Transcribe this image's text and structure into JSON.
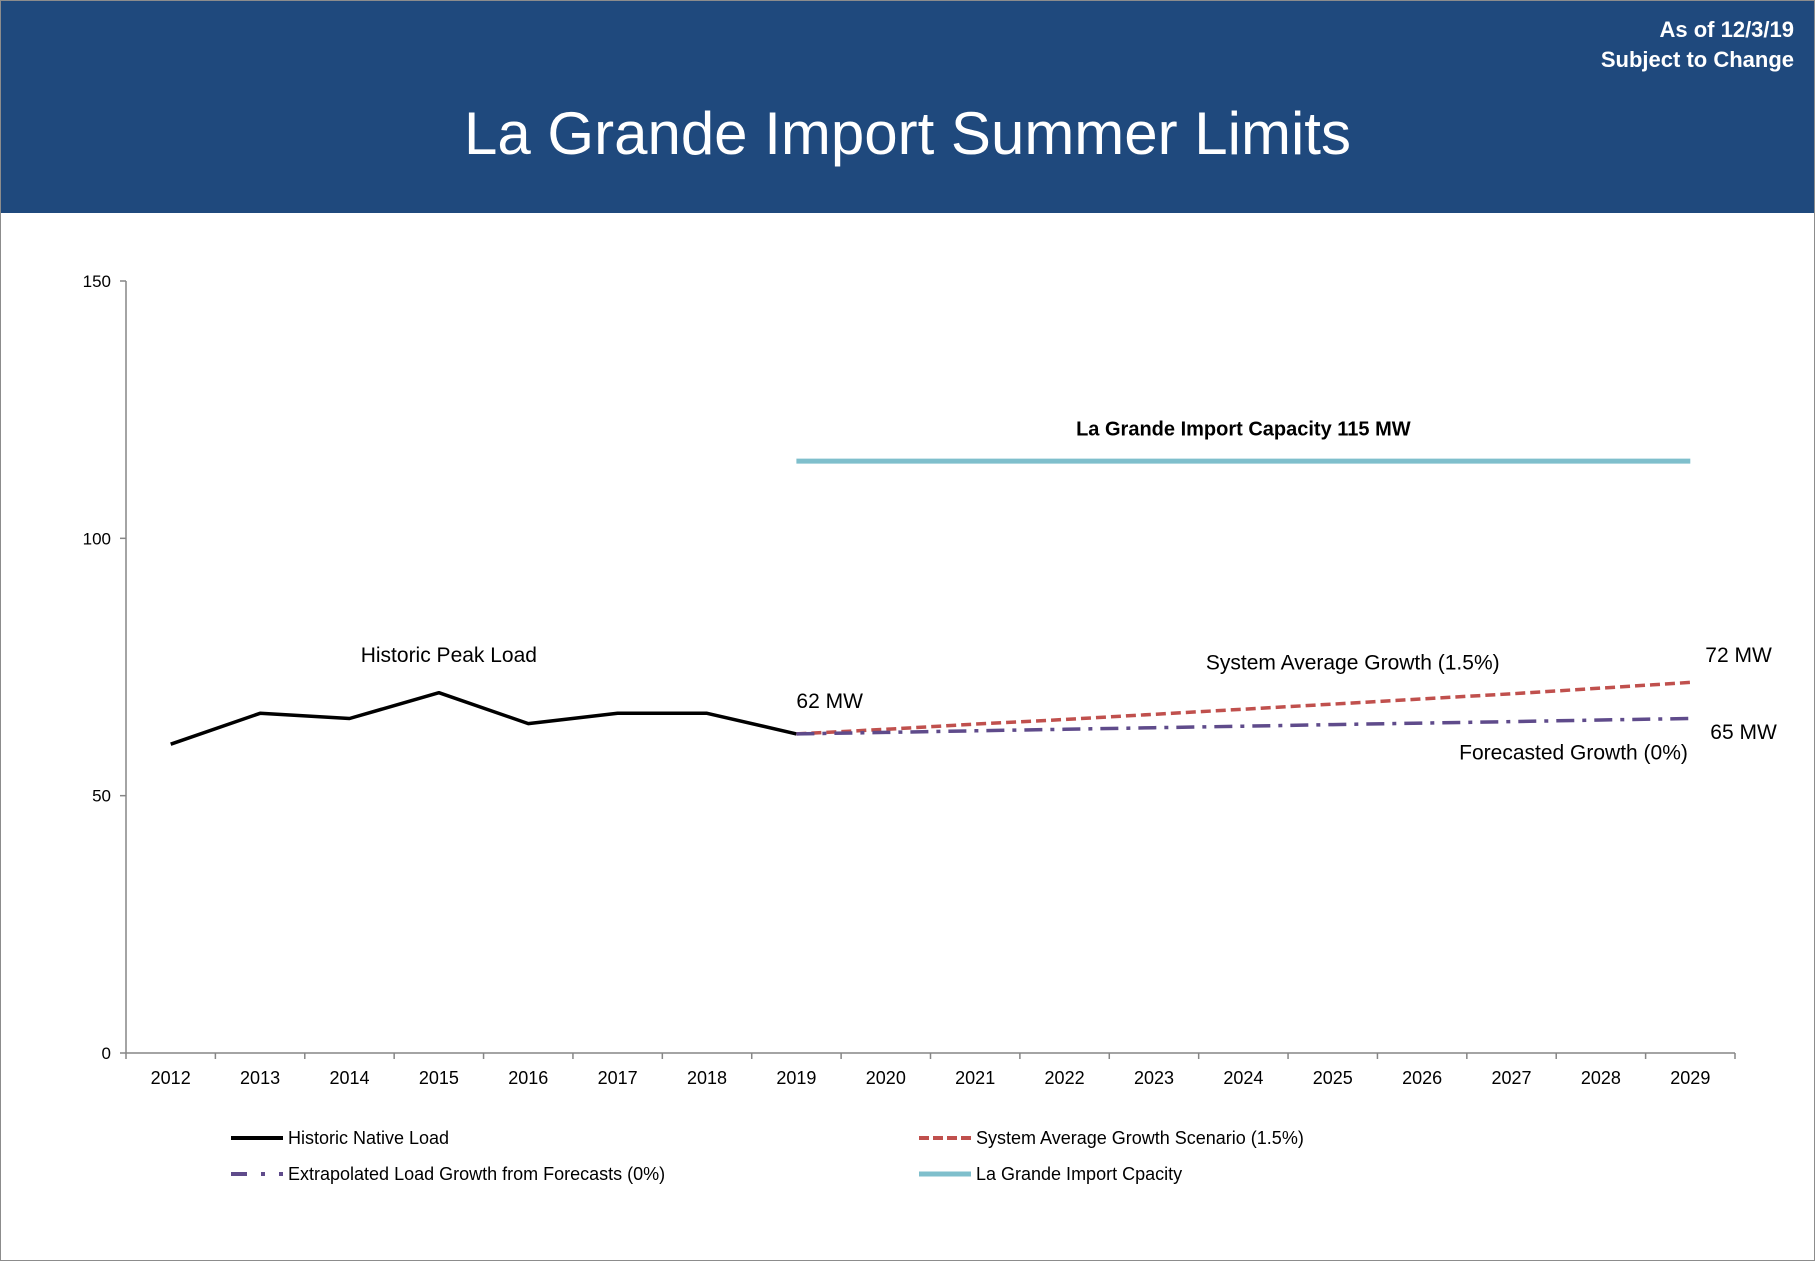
{
  "header": {
    "date_line": "As of 12/3/19",
    "change_line": "Subject to Change",
    "title": "La Grande Import Summer Limits"
  },
  "chart_data": {
    "type": "line",
    "title": "La Grande Import Summer Limits",
    "xlabel": "",
    "ylabel": "",
    "categories": [
      "2012",
      "2013",
      "2014",
      "2015",
      "2016",
      "2017",
      "2018",
      "2019",
      "2020",
      "2021",
      "2022",
      "2023",
      "2024",
      "2025",
      "2026",
      "2027",
      "2028",
      "2029"
    ],
    "ylim": [
      0,
      150
    ],
    "yticks": [
      0,
      50,
      100,
      150
    ],
    "grid": false,
    "legend_position": "bottom",
    "series": [
      {
        "name": "Historic Native Load",
        "color": "#000000",
        "dash": "solid",
        "values": [
          60,
          66,
          65,
          70,
          64,
          66,
          66,
          62,
          null,
          null,
          null,
          null,
          null,
          null,
          null,
          null,
          null,
          null
        ]
      },
      {
        "name": "System Average Growth Scenario (1.5%)",
        "color": "#c0504d",
        "dash": "dash",
        "values": [
          null,
          null,
          null,
          null,
          null,
          null,
          null,
          62,
          62.9,
          63.9,
          64.8,
          65.8,
          66.8,
          67.8,
          68.8,
          69.8,
          70.9,
          72
        ]
      },
      {
        "name": "Extrapolated Load Growth from Forecasts (0%)",
        "color": "#5f4b8b",
        "dash": "dash-dot",
        "values": [
          null,
          null,
          null,
          null,
          null,
          null,
          null,
          62,
          62.3,
          62.6,
          62.9,
          63.2,
          63.5,
          63.8,
          64.1,
          64.4,
          64.7,
          65
        ]
      },
      {
        "name": "La Grande Import Cpacity",
        "color": "#7fbfcc",
        "dash": "solid",
        "values": [
          null,
          null,
          null,
          null,
          null,
          null,
          null,
          115,
          115,
          115,
          115,
          115,
          115,
          115,
          115,
          115,
          115,
          115
        ]
      }
    ],
    "annotations": [
      {
        "text": "La Grande Import Capacity 115 MW",
        "x": "2024",
        "y": 120,
        "bold": true
      },
      {
        "text": "Historic Peak Load",
        "x": "2015",
        "y": 76
      },
      {
        "text": "62 MW",
        "x": "2019",
        "y": 67
      },
      {
        "text": "System Average Growth (1.5%)",
        "x": "2025",
        "y": 74.5
      },
      {
        "text": "72 MW",
        "x": "2029",
        "y": 76
      },
      {
        "text": "65 MW",
        "x": "2029",
        "y": 61
      },
      {
        "text": "Forecasted Growth (0%)",
        "x": "2027",
        "y": 57
      }
    ]
  }
}
